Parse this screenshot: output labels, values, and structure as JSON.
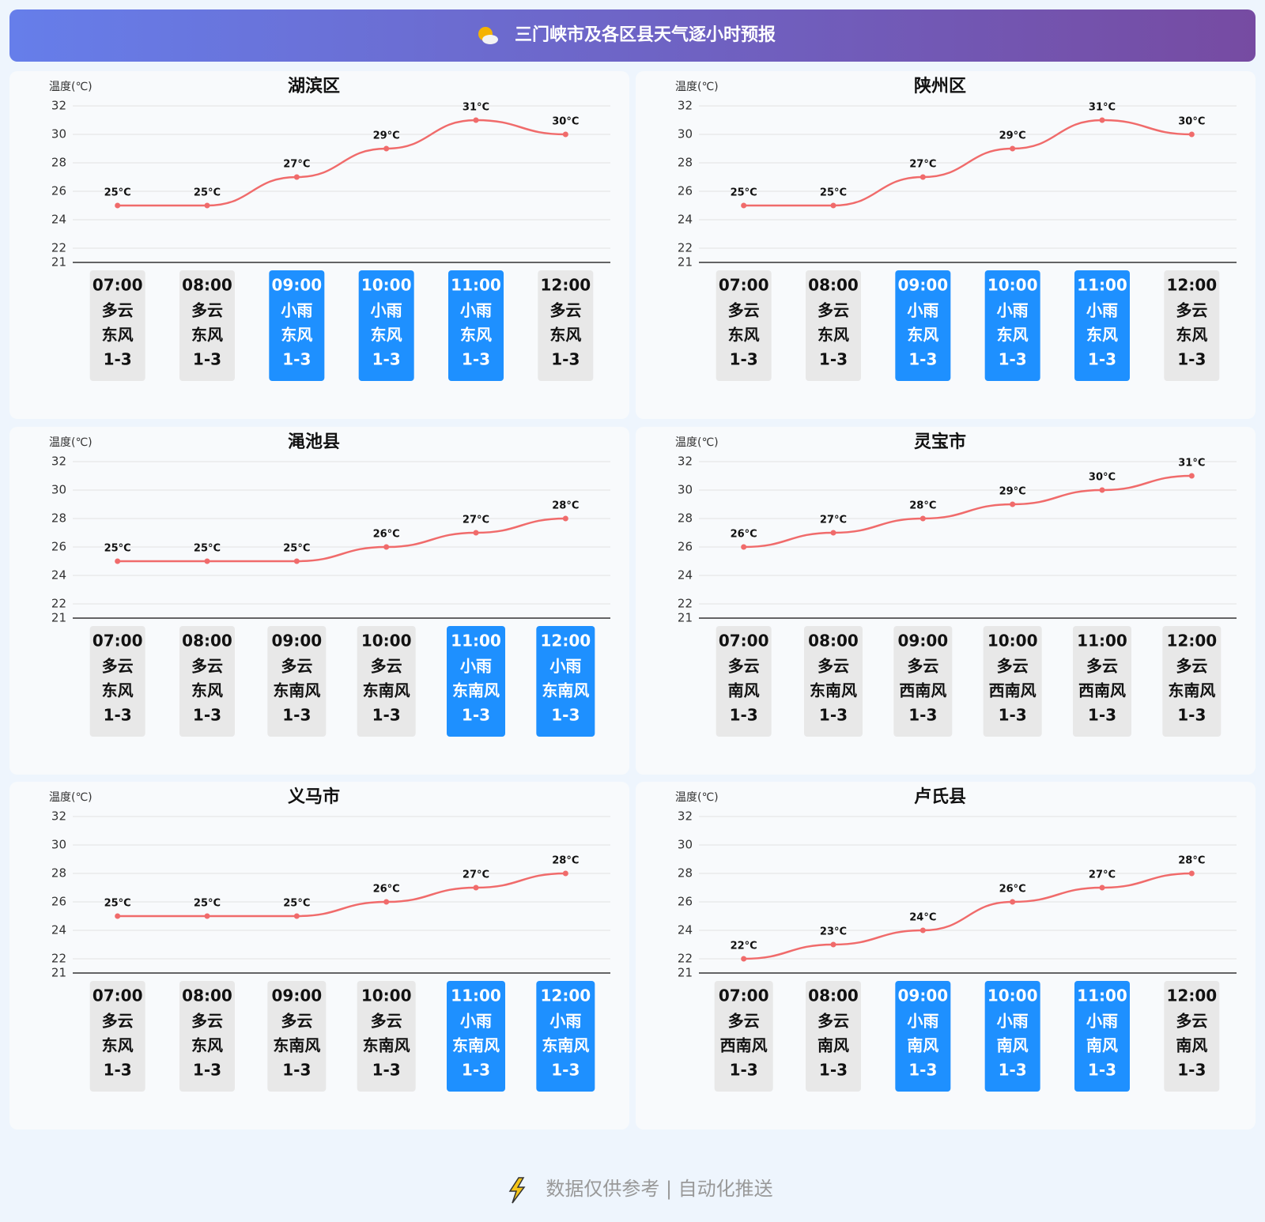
{
  "header": {
    "title": "三门峡市及各区县天气逐小时预报"
  },
  "footer": {
    "text": "数据仅供参考 | 自动化推送"
  },
  "chart_data": [
    {
      "type": "line",
      "title": "湖滨区",
      "y_label": "温度(℃)",
      "color": "#f06b6b",
      "categories": [
        "07:00",
        "08:00",
        "09:00",
        "10:00",
        "11:00",
        "12:00"
      ],
      "values": [
        25,
        25,
        27,
        29,
        31,
        30
      ],
      "value_labels": [
        "25°C",
        "25°C",
        "27°C",
        "29°C",
        "31°C",
        "30°C"
      ],
      "weather": [
        "多云",
        "多云",
        "小雨",
        "小雨",
        "小雨",
        "多云"
      ],
      "wind": [
        "东风",
        "东风",
        "东风",
        "东风",
        "东风",
        "东风"
      ],
      "wind_level": [
        "1-3",
        "1-3",
        "1-3",
        "1-3",
        "1-3",
        "1-3"
      ],
      "card_colors": [
        "#e8e8e8",
        "#e8e8e8",
        "#1e90ff",
        "#1e90ff",
        "#1e90ff",
        "#e8e8e8"
      ],
      "card_text_colors": [
        "#111111",
        "#111111",
        "#ffffff",
        "#ffffff",
        "#ffffff",
        "#111111"
      ],
      "ylim": [
        21,
        32
      ],
      "yticks": [
        21,
        22,
        24,
        26,
        28,
        30,
        32
      ],
      "grid": true
    },
    {
      "type": "line",
      "title": "陕州区",
      "y_label": "温度(℃)",
      "color": "#f06b6b",
      "categories": [
        "07:00",
        "08:00",
        "09:00",
        "10:00",
        "11:00",
        "12:00"
      ],
      "values": [
        25,
        25,
        27,
        29,
        31,
        30
      ],
      "value_labels": [
        "25°C",
        "25°C",
        "27°C",
        "29°C",
        "31°C",
        "30°C"
      ],
      "weather": [
        "多云",
        "多云",
        "小雨",
        "小雨",
        "小雨",
        "多云"
      ],
      "wind": [
        "东风",
        "东风",
        "东风",
        "东风",
        "东风",
        "东风"
      ],
      "wind_level": [
        "1-3",
        "1-3",
        "1-3",
        "1-3",
        "1-3",
        "1-3"
      ],
      "card_colors": [
        "#e8e8e8",
        "#e8e8e8",
        "#1e90ff",
        "#1e90ff",
        "#1e90ff",
        "#e8e8e8"
      ],
      "card_text_colors": [
        "#111111",
        "#111111",
        "#ffffff",
        "#ffffff",
        "#ffffff",
        "#111111"
      ],
      "ylim": [
        21,
        32
      ],
      "yticks": [
        21,
        22,
        24,
        26,
        28,
        30,
        32
      ],
      "grid": true
    },
    {
      "type": "line",
      "title": "渑池县",
      "y_label": "温度(℃)",
      "color": "#f06b6b",
      "categories": [
        "07:00",
        "08:00",
        "09:00",
        "10:00",
        "11:00",
        "12:00"
      ],
      "values": [
        25,
        25,
        25,
        26,
        27,
        28
      ],
      "value_labels": [
        "25°C",
        "25°C",
        "25°C",
        "26°C",
        "27°C",
        "28°C"
      ],
      "weather": [
        "多云",
        "多云",
        "多云",
        "多云",
        "小雨",
        "小雨"
      ],
      "wind": [
        "东风",
        "东风",
        "东南风",
        "东南风",
        "东南风",
        "东南风"
      ],
      "wind_level": [
        "1-3",
        "1-3",
        "1-3",
        "1-3",
        "1-3",
        "1-3"
      ],
      "card_colors": [
        "#e8e8e8",
        "#e8e8e8",
        "#e8e8e8",
        "#e8e8e8",
        "#1e90ff",
        "#1e90ff"
      ],
      "card_text_colors": [
        "#111111",
        "#111111",
        "#111111",
        "#111111",
        "#ffffff",
        "#ffffff"
      ],
      "ylim": [
        21,
        32
      ],
      "yticks": [
        21,
        22,
        24,
        26,
        28,
        30,
        32
      ],
      "grid": true
    },
    {
      "type": "line",
      "title": "灵宝市",
      "y_label": "温度(℃)",
      "color": "#f06b6b",
      "categories": [
        "07:00",
        "08:00",
        "09:00",
        "10:00",
        "11:00",
        "12:00"
      ],
      "values": [
        26,
        27,
        28,
        29,
        30,
        31
      ],
      "value_labels": [
        "26°C",
        "27°C",
        "28°C",
        "29°C",
        "30°C",
        "31°C"
      ],
      "weather": [
        "多云",
        "多云",
        "多云",
        "多云",
        "多云",
        "多云"
      ],
      "wind": [
        "南风",
        "东南风",
        "西南风",
        "西南风",
        "西南风",
        "东南风"
      ],
      "wind_level": [
        "1-3",
        "1-3",
        "1-3",
        "1-3",
        "1-3",
        "1-3"
      ],
      "card_colors": [
        "#e8e8e8",
        "#e8e8e8",
        "#e8e8e8",
        "#e8e8e8",
        "#e8e8e8",
        "#e8e8e8"
      ],
      "card_text_colors": [
        "#111111",
        "#111111",
        "#111111",
        "#111111",
        "#111111",
        "#111111"
      ],
      "ylim": [
        21,
        32
      ],
      "yticks": [
        21,
        22,
        24,
        26,
        28,
        30,
        32
      ],
      "grid": true
    },
    {
      "type": "line",
      "title": "义马市",
      "y_label": "温度(℃)",
      "color": "#f06b6b",
      "categories": [
        "07:00",
        "08:00",
        "09:00",
        "10:00",
        "11:00",
        "12:00"
      ],
      "values": [
        25,
        25,
        25,
        26,
        27,
        28
      ],
      "value_labels": [
        "25°C",
        "25°C",
        "25°C",
        "26°C",
        "27°C",
        "28°C"
      ],
      "weather": [
        "多云",
        "多云",
        "多云",
        "多云",
        "小雨",
        "小雨"
      ],
      "wind": [
        "东风",
        "东风",
        "东南风",
        "东南风",
        "东南风",
        "东南风"
      ],
      "wind_level": [
        "1-3",
        "1-3",
        "1-3",
        "1-3",
        "1-3",
        "1-3"
      ],
      "card_colors": [
        "#e8e8e8",
        "#e8e8e8",
        "#e8e8e8",
        "#e8e8e8",
        "#1e90ff",
        "#1e90ff"
      ],
      "card_text_colors": [
        "#111111",
        "#111111",
        "#111111",
        "#111111",
        "#ffffff",
        "#ffffff"
      ],
      "ylim": [
        21,
        32
      ],
      "yticks": [
        21,
        22,
        24,
        26,
        28,
        30,
        32
      ],
      "grid": true
    },
    {
      "type": "line",
      "title": "卢氏县",
      "y_label": "温度(℃)",
      "color": "#f06b6b",
      "categories": [
        "07:00",
        "08:00",
        "09:00",
        "10:00",
        "11:00",
        "12:00"
      ],
      "values": [
        22,
        23,
        24,
        26,
        27,
        28
      ],
      "value_labels": [
        "22°C",
        "23°C",
        "24°C",
        "26°C",
        "27°C",
        "28°C"
      ],
      "weather": [
        "多云",
        "多云",
        "小雨",
        "小雨",
        "小雨",
        "多云"
      ],
      "wind": [
        "西南风",
        "南风",
        "南风",
        "南风",
        "南风",
        "南风"
      ],
      "wind_level": [
        "1-3",
        "1-3",
        "1-3",
        "1-3",
        "1-3",
        "1-3"
      ],
      "card_colors": [
        "#e8e8e8",
        "#e8e8e8",
        "#1e90ff",
        "#1e90ff",
        "#1e90ff",
        "#e8e8e8"
      ],
      "card_text_colors": [
        "#111111",
        "#111111",
        "#ffffff",
        "#ffffff",
        "#ffffff",
        "#111111"
      ],
      "ylim": [
        21,
        32
      ],
      "yticks": [
        21,
        22,
        24,
        26,
        28,
        30,
        32
      ],
      "grid": true
    }
  ]
}
